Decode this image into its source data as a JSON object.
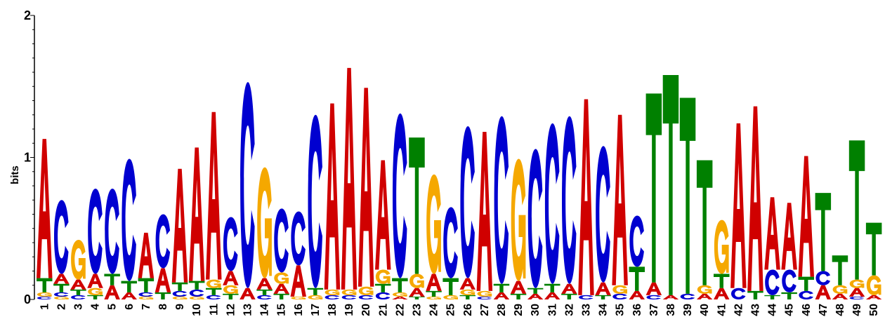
{
  "chart_data": {
    "type": "sequence-logo",
    "ylabel": "bits",
    "ylim": [
      0,
      2
    ],
    "yticks": [
      "0",
      "1",
      "2"
    ],
    "colors": {
      "A": "#d00000",
      "C": "#0000d0",
      "G": "#f5a800",
      "T": "#008000"
    },
    "positions": [
      {
        "label": "1",
        "stack": [
          [
            "C",
            0.02
          ],
          [
            "G",
            0.03
          ],
          [
            "T",
            0.1
          ],
          [
            "A",
            0.98
          ]
        ]
      },
      {
        "label": "2",
        "stack": [
          [
            "G",
            0.02
          ],
          [
            "C",
            0.03
          ],
          [
            "T",
            0.06
          ],
          [
            "A",
            0.07
          ],
          [
            "C",
            0.52
          ]
        ]
      },
      {
        "label": "3",
        "stack": [
          [
            "C",
            0.03
          ],
          [
            "T",
            0.04
          ],
          [
            "A",
            0.07
          ],
          [
            "G",
            0.28
          ]
        ]
      },
      {
        "label": "4",
        "stack": [
          [
            "T",
            0.03
          ],
          [
            "G",
            0.05
          ],
          [
            "A",
            0.1
          ],
          [
            "C",
            0.6
          ]
        ]
      },
      {
        "label": "5",
        "stack": [
          [
            "A",
            0.1
          ],
          [
            "T",
            0.08
          ],
          [
            "C",
            0.6
          ]
        ]
      },
      {
        "label": "6",
        "stack": [
          [
            "A",
            0.05
          ],
          [
            "T",
            0.08
          ],
          [
            "C",
            0.86
          ]
        ]
      },
      {
        "label": "7",
        "stack": [
          [
            "G",
            0.02
          ],
          [
            "C",
            0.03
          ],
          [
            "T",
            0.1
          ],
          [
            "A",
            0.32
          ]
        ]
      },
      {
        "label": "8",
        "stack": [
          [
            "T",
            0.05
          ],
          [
            "A",
            0.17
          ],
          [
            "C",
            0.38
          ]
        ]
      },
      {
        "label": "9",
        "stack": [
          [
            "G",
            0.02
          ],
          [
            "C",
            0.04
          ],
          [
            "T",
            0.06
          ],
          [
            "A",
            0.8
          ]
        ]
      },
      {
        "label": "10",
        "stack": [
          [
            "G",
            0.02
          ],
          [
            "C",
            0.05
          ],
          [
            "T",
            0.06
          ],
          [
            "A",
            0.94
          ]
        ]
      },
      {
        "label": "11",
        "stack": [
          [
            "C",
            0.03
          ],
          [
            "T",
            0.05
          ],
          [
            "G",
            0.06
          ],
          [
            "A",
            1.18
          ]
        ]
      },
      {
        "label": "12",
        "stack": [
          [
            "T",
            0.04
          ],
          [
            "G",
            0.06
          ],
          [
            "A",
            0.1
          ],
          [
            "C",
            0.38
          ]
        ]
      },
      {
        "label": "13",
        "stack": [
          [
            "A",
            0.08
          ],
          [
            "C",
            1.45
          ]
        ]
      },
      {
        "label": "14",
        "stack": [
          [
            "C",
            0.03
          ],
          [
            "T",
            0.04
          ],
          [
            "A",
            0.08
          ],
          [
            "G",
            0.78
          ]
        ]
      },
      {
        "label": "15",
        "stack": [
          [
            "T",
            0.04
          ],
          [
            "A",
            0.07
          ],
          [
            "G",
            0.08
          ],
          [
            "C",
            0.45
          ]
        ]
      },
      {
        "label": "16",
        "stack": [
          [
            "G",
            0.02
          ],
          [
            "A",
            0.22
          ],
          [
            "C",
            0.38
          ]
        ]
      },
      {
        "label": "17",
        "stack": [
          [
            "G",
            0.03
          ],
          [
            "T",
            0.05
          ],
          [
            "C",
            1.22
          ]
        ]
      },
      {
        "label": "18",
        "stack": [
          [
            "C",
            0.03
          ],
          [
            "G",
            0.04
          ],
          [
            "A",
            1.31
          ]
        ]
      },
      {
        "label": "19",
        "stack": [
          [
            "C",
            0.03
          ],
          [
            "G",
            0.04
          ],
          [
            "A",
            1.56
          ]
        ]
      },
      {
        "label": "20",
        "stack": [
          [
            "C",
            0.03
          ],
          [
            "G",
            0.06
          ],
          [
            "A",
            1.4
          ]
        ]
      },
      {
        "label": "21",
        "stack": [
          [
            "C",
            0.05
          ],
          [
            "T",
            0.06
          ],
          [
            "G",
            0.1
          ],
          [
            "A",
            0.77
          ]
        ]
      },
      {
        "label": "22",
        "stack": [
          [
            "A",
            0.02
          ],
          [
            "G",
            0.03
          ],
          [
            "T",
            0.1
          ],
          [
            "C",
            1.16
          ]
        ]
      },
      {
        "label": "23",
        "stack": [
          [
            "T",
            0.02
          ],
          [
            "A",
            0.06
          ],
          [
            "G",
            0.1
          ],
          [
            "T",
            0.96
          ]
        ]
      },
      {
        "label": "24",
        "stack": [
          [
            "G",
            0.02
          ],
          [
            "T",
            0.04
          ],
          [
            "A",
            0.12
          ],
          [
            "G",
            0.7
          ]
        ]
      },
      {
        "label": "25",
        "stack": [
          [
            "G",
            0.03
          ],
          [
            "T",
            0.12
          ],
          [
            "C",
            0.5
          ]
        ]
      },
      {
        "label": "26",
        "stack": [
          [
            "T",
            0.03
          ],
          [
            "G",
            0.04
          ],
          [
            "A",
            0.08
          ],
          [
            "C",
            1.07
          ]
        ]
      },
      {
        "label": "27",
        "stack": [
          [
            "C",
            0.02
          ],
          [
            "G",
            0.04
          ],
          [
            "A",
            1.12
          ]
        ]
      },
      {
        "label": "28",
        "stack": [
          [
            "A",
            0.05
          ],
          [
            "T",
            0.06
          ],
          [
            "C",
            1.18
          ]
        ]
      },
      {
        "label": "29",
        "stack": [
          [
            "T",
            0.04
          ],
          [
            "A",
            0.09
          ],
          [
            "G",
            0.86
          ]
        ]
      },
      {
        "label": "30",
        "stack": [
          [
            "A",
            0.04
          ],
          [
            "T",
            0.04
          ],
          [
            "C",
            0.98
          ]
        ]
      },
      {
        "label": "31",
        "stack": [
          [
            "A",
            0.05
          ],
          [
            "T",
            0.06
          ],
          [
            "C",
            1.13
          ]
        ]
      },
      {
        "label": "32",
        "stack": [
          [
            "T",
            0.04
          ],
          [
            "A",
            0.07
          ],
          [
            "C",
            1.18
          ]
        ]
      },
      {
        "label": "33",
        "stack": [
          [
            "C",
            0.03
          ],
          [
            "A",
            1.38
          ]
        ]
      },
      {
        "label": "34",
        "stack": [
          [
            "T",
            0.03
          ],
          [
            "A",
            0.09
          ],
          [
            "C",
            0.96
          ]
        ]
      },
      {
        "label": "35",
        "stack": [
          [
            "C",
            0.04
          ],
          [
            "G",
            0.06
          ],
          [
            "A",
            1.2
          ]
        ]
      },
      {
        "label": "36",
        "stack": [
          [
            "A",
            0.06
          ],
          [
            "T",
            0.17
          ],
          [
            "C",
            0.36
          ]
        ]
      },
      {
        "label": "37",
        "stack": [
          [
            "C",
            0.03
          ],
          [
            "A",
            0.09
          ],
          [
            "T",
            1.33
          ]
        ]
      },
      {
        "label": "38",
        "stack": [
          [
            "A",
            0.03
          ],
          [
            "T",
            1.55
          ]
        ]
      },
      {
        "label": "39",
        "stack": [
          [
            "C",
            0.04
          ],
          [
            "T",
            1.38
          ]
        ]
      },
      {
        "label": "40",
        "stack": [
          [
            "A",
            0.04
          ],
          [
            "G",
            0.06
          ],
          [
            "T",
            0.88
          ]
        ]
      },
      {
        "label": "41",
        "stack": [
          [
            "A",
            0.08
          ],
          [
            "T",
            0.1
          ],
          [
            "G",
            0.38
          ]
        ]
      },
      {
        "label": "42",
        "stack": [
          [
            "C",
            0.08
          ],
          [
            "A",
            1.16
          ]
        ]
      },
      {
        "label": "43",
        "stack": [
          [
            "T",
            0.06
          ],
          [
            "A",
            1.3
          ]
        ]
      },
      {
        "label": "44",
        "stack": [
          [
            "T",
            0.03
          ],
          [
            "C",
            0.18
          ],
          [
            "A",
            0.51
          ]
        ]
      },
      {
        "label": "45",
        "stack": [
          [
            "T",
            0.05
          ],
          [
            "C",
            0.16
          ],
          [
            "A",
            0.47
          ]
        ]
      },
      {
        "label": "46",
        "stack": [
          [
            "C",
            0.06
          ],
          [
            "T",
            0.1
          ],
          [
            "A",
            0.85
          ]
        ]
      },
      {
        "label": "47",
        "stack": [
          [
            "A",
            0.1
          ],
          [
            "C",
            0.1
          ],
          [
            "T",
            0.55
          ]
        ]
      },
      {
        "label": "48",
        "stack": [
          [
            "A",
            0.04
          ],
          [
            "G",
            0.06
          ],
          [
            "T",
            0.21
          ]
        ]
      },
      {
        "label": "49",
        "stack": [
          [
            "C",
            0.02
          ],
          [
            "A",
            0.06
          ],
          [
            "G",
            0.06
          ],
          [
            "T",
            0.98
          ]
        ]
      },
      {
        "label": "50",
        "stack": [
          [
            "A",
            0.03
          ],
          [
            "G",
            0.14
          ],
          [
            "T",
            0.37
          ]
        ]
      }
    ]
  }
}
